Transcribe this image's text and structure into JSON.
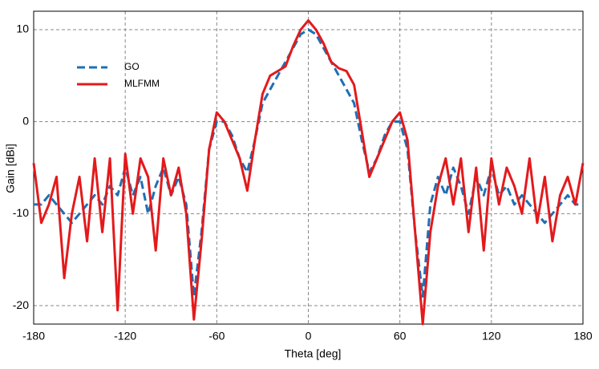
{
  "chart_data": {
    "type": "line",
    "xlabel": "Theta [deg]",
    "ylabel": "Gain [dBi]",
    "x": [
      -180,
      -175,
      -170,
      -165,
      -160,
      -155,
      -150,
      -145,
      -140,
      -135,
      -130,
      -125,
      -120,
      -115,
      -110,
      -105,
      -100,
      -95,
      -90,
      -85,
      -80,
      -75,
      -70,
      -65,
      -60,
      -55,
      -50,
      -45,
      -40,
      -35,
      -30,
      -25,
      -20,
      -15,
      -10,
      -5,
      0,
      5,
      10,
      15,
      20,
      25,
      30,
      35,
      40,
      45,
      50,
      55,
      60,
      65,
      70,
      75,
      80,
      85,
      90,
      95,
      100,
      105,
      110,
      115,
      120,
      125,
      130,
      135,
      140,
      145,
      150,
      155,
      160,
      165,
      170,
      175,
      180
    ],
    "series": [
      {
        "name": "GO",
        "color": "#1f6fb5",
        "dash": true,
        "values": [
          -9,
          -9,
          -8,
          -9,
          -10,
          -11,
          -10,
          -9,
          -8,
          -9,
          -7,
          -8,
          -5,
          -8,
          -6,
          -10,
          -7,
          -5,
          -8,
          -6,
          -9,
          -19,
          -12,
          -3,
          0,
          0,
          -1.5,
          -4,
          -5.5,
          -2,
          2,
          3.5,
          5,
          6.5,
          8,
          9.5,
          10,
          9.5,
          8,
          6.5,
          5,
          3.5,
          2,
          -2,
          -5.5,
          -4,
          -1.5,
          0,
          0,
          -3,
          -12,
          -19,
          -9,
          -6,
          -8,
          -5,
          -7,
          -10,
          -6,
          -8,
          -5,
          -8,
          -7,
          -9,
          -8,
          -9,
          -10,
          -11,
          -10,
          -9,
          -8,
          -9,
          -9
        ]
      },
      {
        "name": "MLFMM",
        "color": "#e31a1c",
        "dash": false,
        "values": [
          -4.5,
          -11,
          -9,
          -6,
          -17,
          -10,
          -6,
          -13,
          -4,
          -12,
          -4,
          -20.5,
          -3.5,
          -10,
          -4,
          -6,
          -14,
          -4,
          -8,
          -5,
          -10,
          -21.5,
          -13,
          -3,
          1,
          0,
          -2,
          -4,
          -7.5,
          -2,
          3,
          5,
          5.5,
          6,
          8.2,
          10,
          11,
          10,
          8.5,
          6.5,
          5.8,
          5.5,
          4,
          -1,
          -6,
          -4,
          -2,
          0,
          1,
          -2,
          -12,
          -22,
          -12,
          -7,
          -4,
          -9,
          -4,
          -12,
          -5,
          -14,
          -4,
          -9,
          -5,
          -7,
          -10,
          -4,
          -11,
          -6,
          -13,
          -8,
          -6,
          -9,
          -4.5
        ]
      }
    ],
    "xlim": [
      -180,
      180
    ],
    "xticks": [
      -180,
      -120,
      -60,
      0,
      60,
      120,
      180
    ],
    "ylim": [
      -22,
      12
    ],
    "yticks": [
      -20,
      -10,
      0,
      10
    ],
    "grid": true,
    "legend": "upper-left"
  }
}
